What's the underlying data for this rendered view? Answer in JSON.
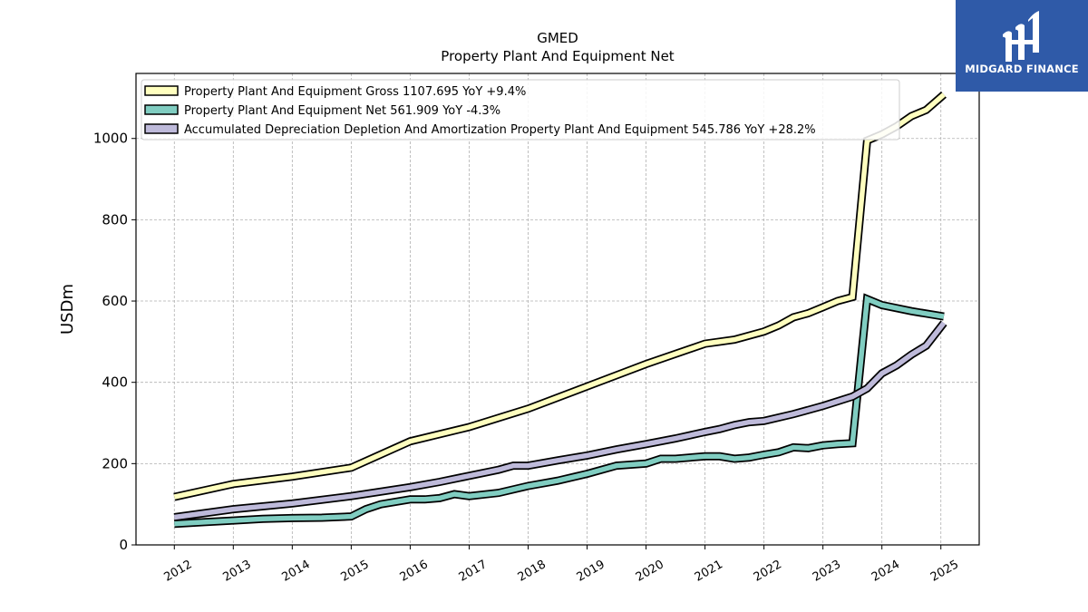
{
  "header": {
    "title": "GMED",
    "subtitle": "Property Plant And Equipment Net"
  },
  "logo": {
    "text": "MIDGARD FINANCE",
    "color": "#2f5aa8"
  },
  "chart_data": {
    "type": "line",
    "title": "GMED",
    "subtitle": "Property Plant And Equipment Net",
    "xlabel": "",
    "ylabel": "USDm",
    "xlim": [
      2011.35,
      2025.65
    ],
    "ylim": [
      0,
      1160
    ],
    "yticks": [
      0,
      200,
      400,
      600,
      800,
      1000
    ],
    "xticks": [
      2012,
      2013,
      2014,
      2015,
      2016,
      2017,
      2018,
      2019,
      2020,
      2021,
      2022,
      2023,
      2024,
      2025
    ],
    "grid": true,
    "legend_position": "top-left",
    "series": [
      {
        "name": "Property Plant And Equipment Gross",
        "legend_label": "Property Plant And Equipment Gross  1107.695 YoY +9.4%",
        "color": "#ffffbf",
        "x": [
          2012.0,
          2013.0,
          2014.0,
          2015.0,
          2016.0,
          2017.0,
          2018.0,
          2019.0,
          2020.0,
          2021.0,
          2021.5,
          2022.0,
          2022.25,
          2022.5,
          2022.75,
          2023.0,
          2023.25,
          2023.5,
          2023.75,
          2024.0,
          2024.25,
          2024.5,
          2024.75,
          2025.05
        ],
        "y": [
          118,
          150,
          168,
          190,
          255,
          290,
          335,
          390,
          445,
          495,
          505,
          525,
          540,
          560,
          570,
          585,
          600,
          610,
          995,
          1010,
          1030,
          1055,
          1070,
          1108
        ]
      },
      {
        "name": "Property Plant And Equipment Net",
        "legend_label": "Property Plant And Equipment Net  561.909 YoY -4.3%",
        "color": "#80cdc1",
        "x": [
          2012.0,
          2012.5,
          2013.0,
          2013.5,
          2014.0,
          2014.5,
          2015.0,
          2015.25,
          2015.5,
          2016.0,
          2016.25,
          2016.5,
          2016.75,
          2017.0,
          2017.5,
          2018.0,
          2018.5,
          2019.0,
          2019.5,
          2020.0,
          2020.25,
          2020.5,
          2020.75,
          2021.0,
          2021.25,
          2021.5,
          2021.75,
          2022.0,
          2022.25,
          2022.5,
          2022.75,
          2023.0,
          2023.25,
          2023.5,
          2023.75,
          2024.0,
          2024.5,
          2025.05
        ],
        "y": [
          52,
          56,
          60,
          64,
          66,
          67,
          70,
          88,
          100,
          112,
          112,
          115,
          125,
          120,
          128,
          145,
          158,
          175,
          195,
          200,
          212,
          212,
          215,
          218,
          218,
          212,
          215,
          222,
          228,
          240,
          238,
          245,
          248,
          250,
          605,
          590,
          575,
          562
        ]
      },
      {
        "name": "Accumulated Depreciation Depletion And Amortization Property Plant And Equipment",
        "legend_label": "Accumulated Depreciation Depletion And Amortization Property Plant And Equipment  545.786 YoY +28.2%",
        "color": "#bebada",
        "x": [
          2012.0,
          2013.0,
          2014.0,
          2015.0,
          2016.0,
          2016.5,
          2017.0,
          2017.5,
          2017.75,
          2018.0,
          2018.5,
          2019.0,
          2019.5,
          2020.0,
          2020.5,
          2021.0,
          2021.25,
          2021.5,
          2021.75,
          2022.0,
          2022.5,
          2023.0,
          2023.5,
          2023.75,
          2024.0,
          2024.25,
          2024.5,
          2024.75,
          2025.05
        ],
        "y": [
          68,
          88,
          102,
          120,
          142,
          155,
          170,
          185,
          195,
          195,
          208,
          220,
          235,
          248,
          262,
          278,
          285,
          295,
          302,
          305,
          322,
          342,
          365,
          385,
          422,
          442,
          468,
          490,
          546
        ]
      }
    ]
  }
}
